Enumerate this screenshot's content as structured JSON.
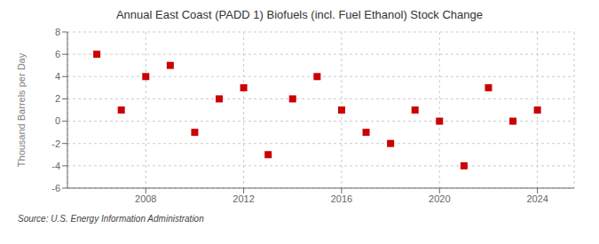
{
  "chart_data": {
    "type": "scatter",
    "title": "Annual East Coast (PADD 1) Biofuels (incl. Fuel Ethanol) Stock Change",
    "y_label": "Thousand Barrels per Day",
    "annotations": [
      "Source: U.S. Energy Information Administration"
    ],
    "x": [
      2006,
      2007,
      2008,
      2009,
      2010,
      2011,
      2012,
      2013,
      2014,
      2015,
      2016,
      2017,
      2018,
      2019,
      2020,
      2021,
      2022,
      2023,
      2024
    ],
    "values": [
      6.0,
      1.0,
      4.0,
      5.0,
      -1.0,
      2.0,
      3.0,
      -3.0,
      2.0,
      4.0,
      1.0,
      -1.0,
      -2.0,
      1.0,
      0.0,
      -4.0,
      3.0,
      0.0,
      1.0
    ],
    "color": "#cc0000",
    "marker": "square",
    "xlim": [
      2004.8,
      2025.5
    ],
    "xticks": [
      2008,
      2012,
      2016,
      2020,
      2024
    ],
    "ylim": [
      -6,
      8
    ],
    "yticks": [
      -6,
      -4,
      -2,
      0,
      2,
      4,
      6,
      8
    ],
    "grid": true
  }
}
